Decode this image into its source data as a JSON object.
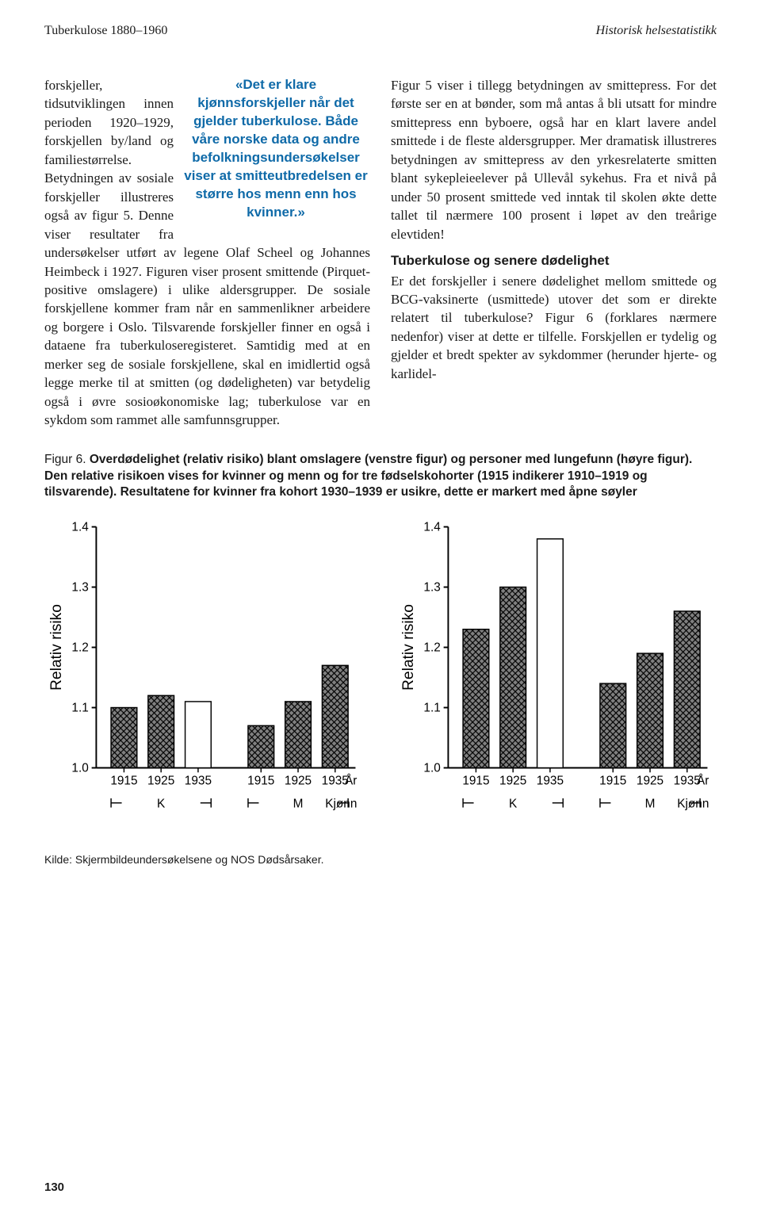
{
  "header": {
    "left": "Tuberkulose 1880–1960",
    "right": "Historisk helsestatistikk"
  },
  "pull_quote": "«Det er klare kjønnsforskjeller når det gjelder tuberkulose. Både våre norske data og andre befolkningsundersøkelser viser at smitteutbredelsen er større hos menn enn hos kvinner.»",
  "left_column_text": "forskjeller, tidsutviklingen innen perioden 1920–1929, forskjellen by/land og familiestørrelse. Betydningen av sosiale forskjeller illustreres også av figur 5. Denne viser resultater fra undersøkelser utført av legene Olaf Scheel og Johannes Heimbeck i 1927. Figuren viser prosent smittende (Pirquet-positive omslagere) i ulike aldersgrupper. De sosiale forskjellene kommer fram når en sammenlikner arbeidere og borgere i Oslo. Tilsvarende forskjeller finner en også i dataene fra tuberkuloseregisteret. Samtidig med at en merker seg de sosiale forskjellene, skal en imidlertid også legge merke til at smitten (og dødeligheten) var betydelig også i øvre sosioøkonomiske lag; tuberkulose var en sykdom som rammet alle samfunnsgrupper.",
  "right_column_par1": "Figur 5 viser i tillegg betydningen av smittepress. For det første ser en at bønder, som må antas å bli utsatt for mindre smittepress enn byboere, også har en klart lavere andel smittede i de fleste aldersgrupper. Mer dramatisk illustreres betydningen av smittepress av den yrkesrelaterte smitten blant sykepleieelever på Ullevål sykehus. Fra et nivå på under 50 prosent smittede ved inntak til skolen økte dette tallet til nærmere 100 prosent i løpet av den treårige elevtiden!",
  "right_subhead": "Tuberkulose og senere dødelighet",
  "right_column_par2": "Er det forskjeller i senere dødelighet mellom smittede og BCG-vaksinerte (usmittede) utover det som er direkte relatert til tuberkulose? Figur 6 (forklares nærmere nedenfor) viser at dette er tilfelle. Forskjellen er tydelig og gjelder et bredt spekter av sykdommer (herunder hjerte- og karlidel-",
  "figure_caption": {
    "lead": "Figur 6. ",
    "bold": "Overdødelighet (relativ risiko) blant omslagere (venstre figur) og personer med lungefunn (høyre figur). Den relative risikoen vises for kvinner og menn og for tre fødselskohorter (1915 indikerer 1910–1919 og tilsvarende). Resultatene for kvinner fra kohort 1930–1939 er usikre, dette er markert med åpne søyler"
  },
  "charts": {
    "type": "bar",
    "ylabel": "Relativ risiko",
    "ylim": [
      1.0,
      1.4
    ],
    "yticks": [
      1.0,
      1.1,
      1.2,
      1.3,
      1.4
    ],
    "xlabel": "År",
    "group_label": "Kjønn",
    "categories": [
      "1915",
      "1925",
      "1935",
      "1915",
      "1925",
      "1935"
    ],
    "groups": [
      "K",
      "M"
    ],
    "left": {
      "values": [
        1.1,
        1.12,
        1.11,
        1.07,
        1.11,
        1.17
      ],
      "open_bar_index": 2,
      "bar_color": "#808080",
      "pattern": "cross",
      "open_color": "#ffffff",
      "border_color": "#000000"
    },
    "right": {
      "values": [
        1.23,
        1.3,
        1.38,
        1.14,
        1.19,
        1.26
      ],
      "open_bar_index": 2,
      "bar_color": "#808080",
      "pattern": "cross",
      "open_color": "#ffffff",
      "border_color": "#000000"
    },
    "background_color": "#ffffff",
    "axis_color": "#000000",
    "axis_fontsize": 16,
    "label_fontsize": 20,
    "bar_width": 0.7
  },
  "source_line": "Kilde: Skjermbildeundersøkelsene og NOS Dødsårsaker.",
  "page_number": "130"
}
